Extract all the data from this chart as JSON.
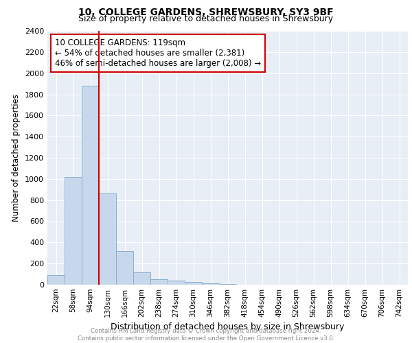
{
  "title1": "10, COLLEGE GARDENS, SHREWSBURY, SY3 9BF",
  "title2": "Size of property relative to detached houses in Shrewsbury",
  "xlabel": "Distribution of detached houses by size in Shrewsbury",
  "ylabel": "Number of detached properties",
  "bar_values": [
    90,
    1020,
    1880,
    860,
    320,
    120,
    50,
    40,
    25,
    10,
    5,
    0,
    0,
    0,
    0,
    0,
    0,
    0,
    0,
    0,
    0
  ],
  "bar_labels": [
    "22sqm",
    "58sqm",
    "94sqm",
    "130sqm",
    "166sqm",
    "202sqm",
    "238sqm",
    "274sqm",
    "310sqm",
    "346sqm",
    "382sqm",
    "418sqm",
    "454sqm",
    "490sqm",
    "526sqm",
    "562sqm",
    "598sqm",
    "634sqm",
    "670sqm",
    "706sqm",
    "742sqm"
  ],
  "bar_color": "#c8d8ec",
  "bar_edge_color": "#8ab0cc",
  "vline_color": "#cc0000",
  "vline_position": 2.5,
  "annotation_text": "10 COLLEGE GARDENS: 119sqm\n← 54% of detached houses are smaller (2,381)\n46% of semi-detached houses are larger (2,008) →",
  "annotation_box_edge": "#cc0000",
  "ylim": [
    0,
    2400
  ],
  "yticks": [
    0,
    200,
    400,
    600,
    800,
    1000,
    1200,
    1400,
    1600,
    1800,
    2000,
    2200,
    2400
  ],
  "footer_line1": "Contains HM Land Registry data © Crown copyright and database right 2024.",
  "footer_line2": "Contains public sector information licensed under the Open Government Licence v3.0.",
  "plot_bg_color": "#e8eef5",
  "grid_color": "#ffffff"
}
